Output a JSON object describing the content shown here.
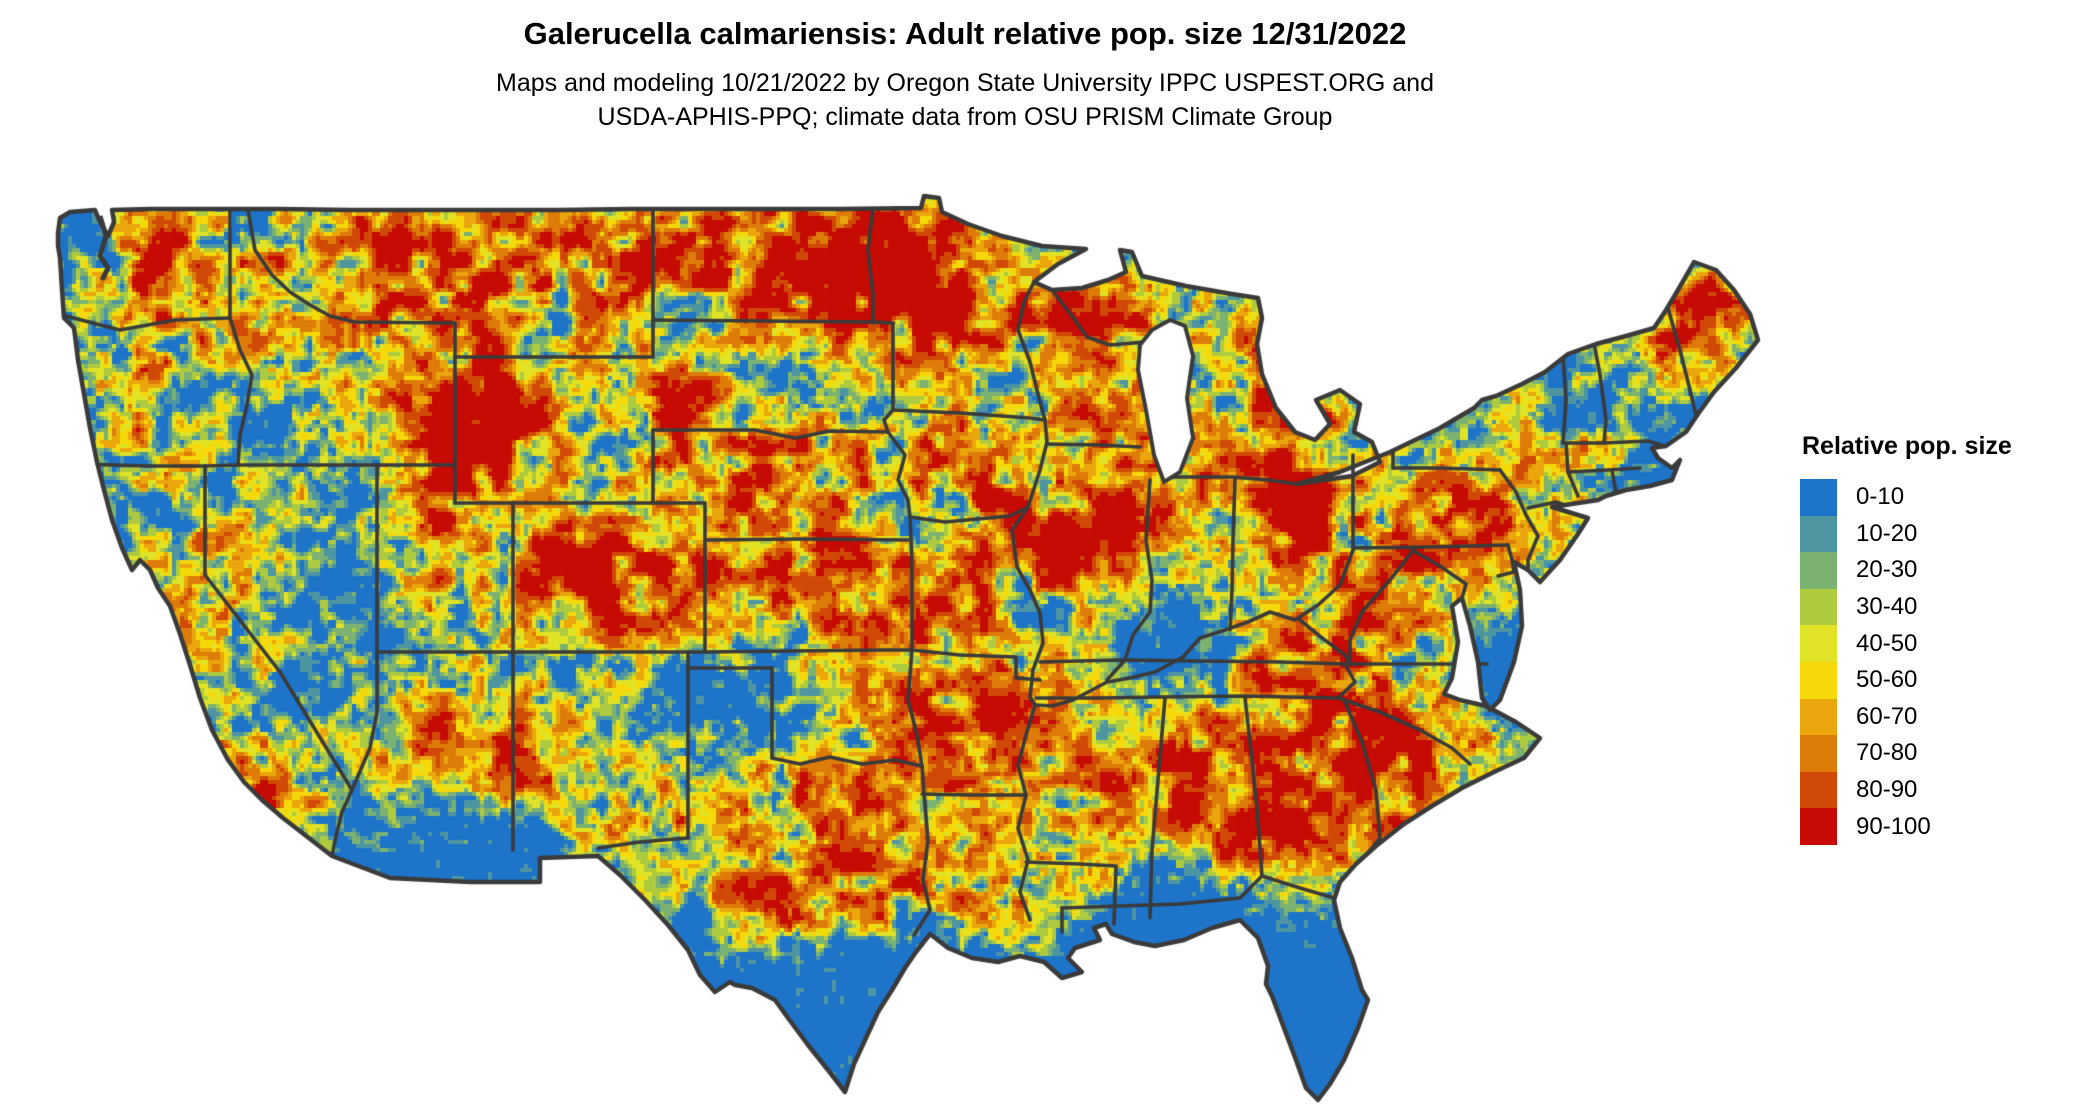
{
  "header": {
    "title": "Galerucella calmariensis: Adult relative pop. size 12/31/2022",
    "subtitle_line1": "Maps and modeling 10/21/2022 by Oregon State University IPPC USPEST.ORG and",
    "subtitle_line2": "USDA-APHIS-PPQ; climate data from OSU PRISM Climate Group"
  },
  "legend": {
    "title": "Relative pop. size",
    "bins": [
      {
        "label": "0-10",
        "color": "#1D74C9"
      },
      {
        "label": "10-20",
        "color": "#4E95A2"
      },
      {
        "label": "20-30",
        "color": "#7BB271"
      },
      {
        "label": "30-40",
        "color": "#AECB40"
      },
      {
        "label": "40-50",
        "color": "#E0E326"
      },
      {
        "label": "50-60",
        "color": "#F5D90A"
      },
      {
        "label": "60-70",
        "color": "#EAA60C"
      },
      {
        "label": "70-80",
        "color": "#DE7C09"
      },
      {
        "label": "80-90",
        "color": "#D14906"
      },
      {
        "label": "90-100",
        "color": "#C50B03"
      }
    ]
  },
  "map": {
    "type": "raster-choropleth",
    "region": "Continental United States",
    "background_color": "#ffffff",
    "water_color": "#ffffff",
    "state_border_color": "#3a3a3a",
    "base_value_color": "#1D74C9"
  }
}
